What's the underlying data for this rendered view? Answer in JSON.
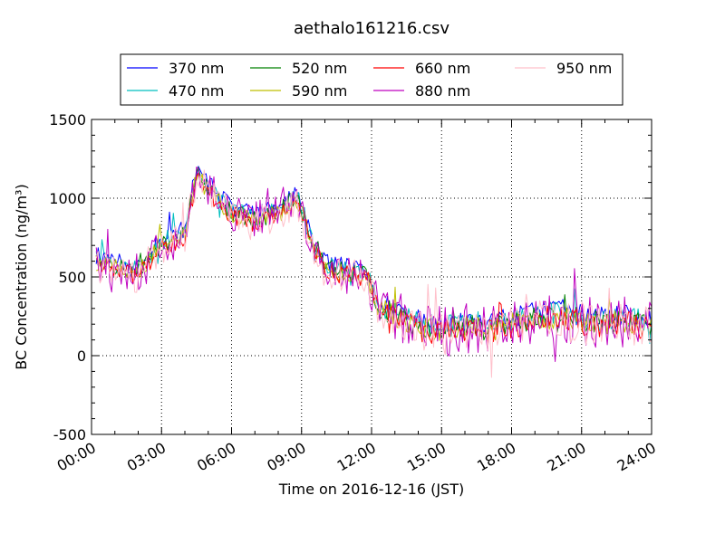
{
  "chart_data": {
    "type": "line",
    "title": "aethalo161216.csv",
    "xlabel": "Time on 2016-12-16 (JST)",
    "ylabel": "BC Concentration (ng/m³)",
    "xlim_hours": [
      0,
      24
    ],
    "ylim": [
      -500,
      1500
    ],
    "x_ticks": [
      "00:00",
      "03:00",
      "06:00",
      "09:00",
      "12:00",
      "15:00",
      "18:00",
      "21:00",
      "24:00"
    ],
    "y_ticks": [
      -500,
      0,
      500,
      1000,
      1500
    ],
    "grid": true,
    "legend_position": "top-center",
    "trend": {
      "x_hours": [
        0,
        1,
        2,
        3,
        4,
        4.5,
        5,
        6,
        7,
        8,
        8.8,
        9.5,
        10,
        11,
        11.8,
        12.3,
        13,
        14,
        15,
        16,
        17,
        18,
        19,
        20,
        21,
        22,
        23,
        24
      ],
      "y": [
        600,
        560,
        520,
        700,
        760,
        1150,
        1050,
        900,
        850,
        900,
        1000,
        700,
        550,
        520,
        500,
        300,
        250,
        180,
        150,
        180,
        160,
        200,
        230,
        250,
        220,
        200,
        220,
        180
      ]
    },
    "series": [
      {
        "name": "370 nm",
        "color": "#0000ff",
        "offset": 45,
        "noise": 55,
        "seed": 11
      },
      {
        "name": "470 nm",
        "color": "#00bfbf",
        "offset": 25,
        "noise": 60,
        "seed": 23
      },
      {
        "name": "520 nm",
        "color": "#008000",
        "offset": 10,
        "noise": 60,
        "seed": 37
      },
      {
        "name": "590 nm",
        "color": "#bfbf00",
        "offset": 0,
        "noise": 60,
        "seed": 41
      },
      {
        "name": "660 nm",
        "color": "#ff0000",
        "offset": -10,
        "noise": 65,
        "seed": 53
      },
      {
        "name": "880 nm",
        "color": "#bf00bf",
        "offset": 0,
        "noise": 130,
        "seed": 67
      },
      {
        "name": "950 nm",
        "color": "#ffc0cb",
        "offset": -15,
        "noise": 110,
        "seed": 79
      }
    ]
  }
}
